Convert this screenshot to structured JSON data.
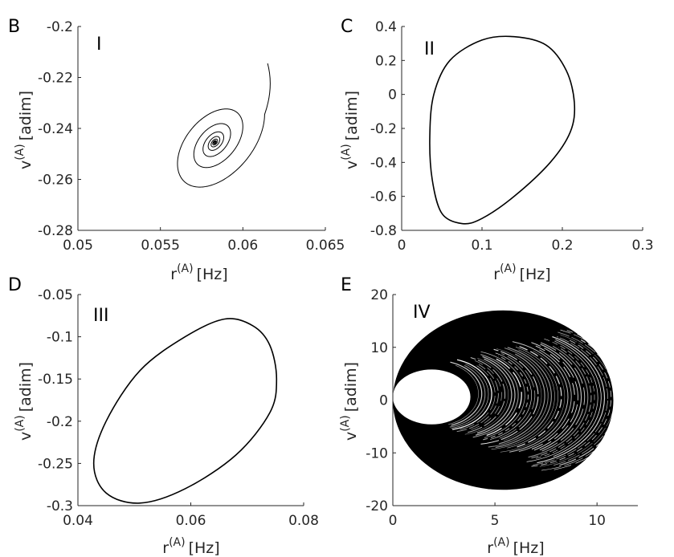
{
  "figure": {
    "panels": [
      "B",
      "C",
      "D",
      "E"
    ]
  },
  "chart_data": [
    {
      "type": "line",
      "panel_letter": "B",
      "regime_label": "I",
      "xlabel_base": "r",
      "xlabel_sup": "(A)",
      "xlabel_unit": "[Hz]",
      "ylabel_base": "v",
      "ylabel_sup": "(A)",
      "ylabel_unit": "[adim]",
      "xlim": [
        0.05,
        0.065
      ],
      "ylim": [
        -0.28,
        -0.2
      ],
      "xticks": [
        0.05,
        0.055,
        0.06,
        0.065
      ],
      "xtick_labels": [
        "0.05",
        "0.055",
        "0.06",
        "0.065"
      ],
      "yticks": [
        -0.28,
        -0.26,
        -0.24,
        -0.22,
        -0.2
      ],
      "ytick_labels": [
        "-0.28",
        "-0.26",
        "-0.24",
        "-0.22",
        "-0.2"
      ],
      "trajectory": "damped spiral converging to fixed point",
      "fixed_point": [
        0.0583,
        -0.2455
      ],
      "start_point": [
        0.0615,
        -0.2145
      ],
      "spiral_turns": 8,
      "color": "#000000"
    },
    {
      "type": "line",
      "panel_letter": "C",
      "regime_label": "II",
      "xlabel_base": "r",
      "xlabel_sup": "(A)",
      "xlabel_unit": "[Hz]",
      "ylabel_base": "v",
      "ylabel_sup": "(A)",
      "ylabel_unit": "[adim]",
      "xlim": [
        0,
        0.3
      ],
      "ylim": [
        -0.8,
        0.4
      ],
      "xticks": [
        0,
        0.1,
        0.2,
        0.3
      ],
      "xtick_labels": [
        "0",
        "0.1",
        "0.2",
        "0.3"
      ],
      "yticks": [
        -0.8,
        -0.6,
        -0.4,
        -0.2,
        0,
        0.2,
        0.4
      ],
      "ytick_labels": [
        "-0.8",
        "-0.6",
        "-0.4",
        "-0.2",
        "0",
        "0.2",
        "0.4"
      ],
      "trajectory": "limit cycle",
      "x": [
        0.14,
        0.18,
        0.205,
        0.215,
        0.21,
        0.185,
        0.14,
        0.1,
        0.075,
        0.05,
        0.038,
        0.035,
        0.04,
        0.06,
        0.1,
        0.14
      ],
      "y": [
        0.34,
        0.29,
        0.14,
        -0.05,
        -0.22,
        -0.4,
        -0.6,
        -0.73,
        -0.76,
        -0.7,
        -0.5,
        -0.25,
        0.0,
        0.2,
        0.32,
        0.34
      ],
      "color": "#000000"
    },
    {
      "type": "line",
      "panel_letter": "D",
      "regime_label": "III",
      "xlabel_base": "r",
      "xlabel_sup": "(A)",
      "xlabel_unit": "[Hz]",
      "ylabel_base": "v",
      "ylabel_sup": "(A)",
      "ylabel_unit": "[adim]",
      "xlim": [
        0.04,
        0.08
      ],
      "ylim": [
        -0.3,
        -0.05
      ],
      "xticks": [
        0.04,
        0.06,
        0.08
      ],
      "xtick_labels": [
        "0.04",
        "0.06",
        "0.08"
      ],
      "yticks": [
        -0.3,
        -0.25,
        -0.2,
        -0.15,
        -0.1,
        -0.05
      ],
      "ytick_labels": [
        "-0.3",
        "-0.25",
        "-0.2",
        "-0.15",
        "-0.1",
        "-0.05"
      ],
      "trajectory": "limit cycle",
      "x": [
        0.066,
        0.071,
        0.074,
        0.0752,
        0.074,
        0.068,
        0.059,
        0.051,
        0.045,
        0.0428,
        0.045,
        0.051,
        0.059,
        0.066
      ],
      "y": [
        -0.079,
        -0.087,
        -0.11,
        -0.15,
        -0.19,
        -0.24,
        -0.28,
        -0.297,
        -0.285,
        -0.25,
        -0.2,
        -0.14,
        -0.1,
        -0.079
      ],
      "color": "#000000"
    },
    {
      "type": "area",
      "panel_letter": "E",
      "regime_label": "IV",
      "xlabel_base": "r",
      "xlabel_sup": "(A)",
      "xlabel_unit": "[Hz]",
      "ylabel_base": "v",
      "ylabel_sup": "(A)",
      "ylabel_unit": "[adim]",
      "xlim": [
        0,
        12
      ],
      "ylim": [
        -20,
        20
      ],
      "xticks": [
        0,
        5,
        10
      ],
      "xtick_labels": [
        "0",
        "5",
        "10"
      ],
      "yticks": [
        -20,
        -10,
        0,
        10,
        20
      ],
      "ytick_labels": [
        "-20",
        "-10",
        "0",
        "10",
        "20"
      ],
      "trajectory": "chaotic attractor filling annular region",
      "outer_boundary": {
        "x_range": [
          0,
          10.8
        ],
        "y_range": [
          -17,
          17
        ]
      },
      "inner_hole": {
        "x_range": [
          0,
          3.8
        ],
        "y_range": [
          -4.6,
          5.8
        ]
      },
      "color": "#000000"
    }
  ]
}
